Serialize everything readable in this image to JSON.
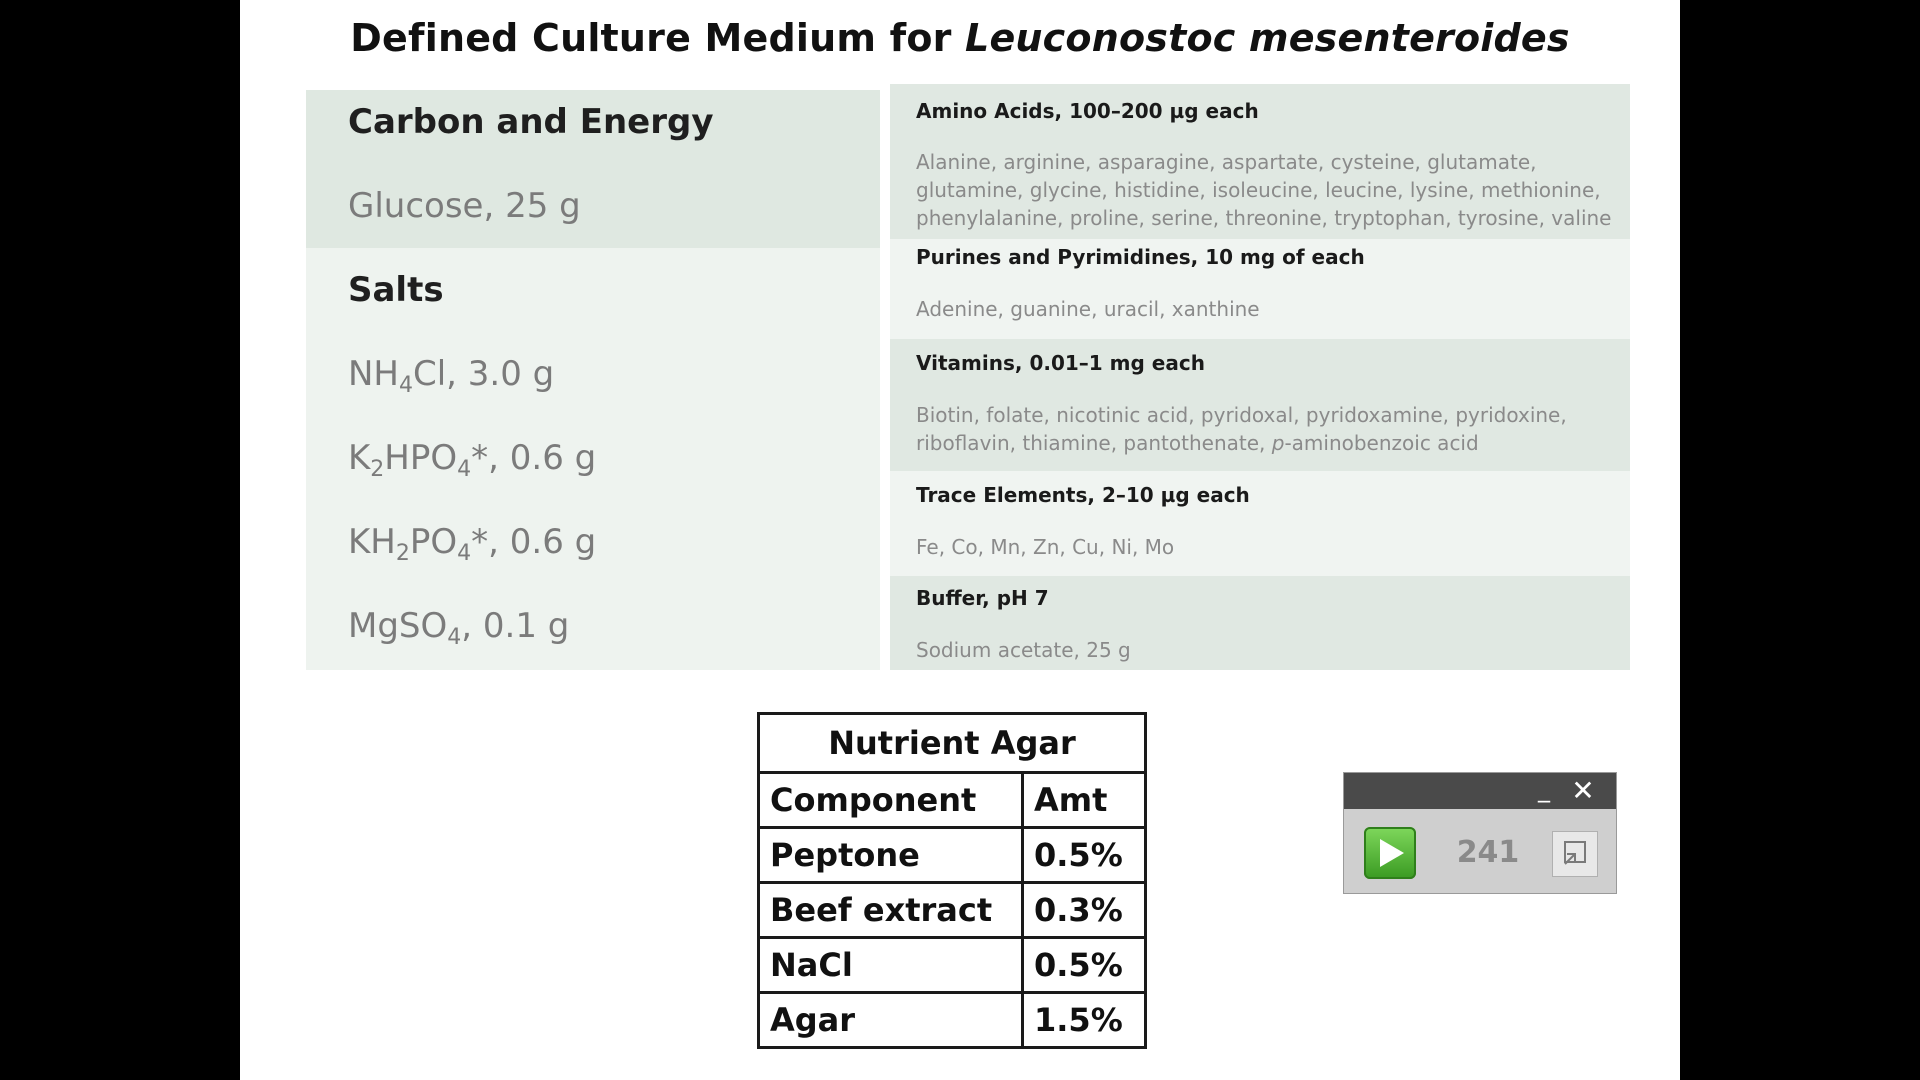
{
  "slide": {
    "title_plain": "Defined Culture Medium for ",
    "title_italic": "Leuconostoc mesenteroides"
  },
  "left": {
    "carbon_heading": "Carbon and Energy",
    "glucose": "Glucose, 25 g",
    "salts_heading": "Salts",
    "nh4cl": {
      "pre": "NH",
      "sub": "4",
      "post": "Cl, 3.0 g"
    },
    "k2hpo4": {
      "a": "K",
      "s1": "2",
      "b": "HPO",
      "s2": "4",
      "c": "*, 0.6 g"
    },
    "kh2po4": {
      "a": "KH",
      "s1": "2",
      "b": "PO",
      "s2": "4",
      "c": "*, 0.6 g"
    },
    "mgso4": {
      "a": "MgSO",
      "s1": "4",
      "c": ", 0.1 g"
    }
  },
  "right": {
    "amino_title": "Amino Acids, 100–200 µg each",
    "amino_text": "Alanine, arginine, asparagine, aspartate, cysteine, glutamate, glutamine, glycine, histidine, isoleucine, leucine, lysine, methionine, phenylalanine, proline, serine, threonine, tryptophan, tyrosine, valine",
    "purines_title": "Purines and Pyrimidines, 10 mg of each",
    "purines_text": "Adenine, guanine, uracil, xanthine",
    "vitamins_title": "Vitamins, 0.01–1 mg each",
    "vitamins_text_a": "Biotin, folate, nicotinic acid, pyridoxal, pyridoxamine, pyridoxine, riboflavin, thiamine, pantothenate, ",
    "vitamins_text_it": "p",
    "vitamins_text_b": "-aminobenzoic acid",
    "trace_title": "Trace Elements, 2–10  µg each",
    "trace_text": "Fe, Co, Mn, Zn, Cu, Ni, Mo",
    "buffer_title": "Buffer, pH 7",
    "buffer_text": "Sodium acetate, 25 g"
  },
  "agar": {
    "title": "Nutrient Agar",
    "headers": [
      "Component",
      "Amt"
    ],
    "rows": [
      [
        "Peptone",
        "0.5%"
      ],
      [
        "Beef extract",
        "0.3%"
      ],
      [
        "NaCl",
        "0.5%"
      ],
      [
        "Agar",
        "1.5%"
      ]
    ]
  },
  "widget": {
    "minimize_glyph": "_",
    "close_glyph": "✕",
    "count": "241",
    "icons": [
      "play-icon",
      "expand-icon"
    ]
  },
  "colors": {
    "left_band": "#dfe8e1",
    "left_panel": "#eef3ef",
    "right_band_dark": "#e0e8e2",
    "right_band_light": "#f0f4f1"
  }
}
